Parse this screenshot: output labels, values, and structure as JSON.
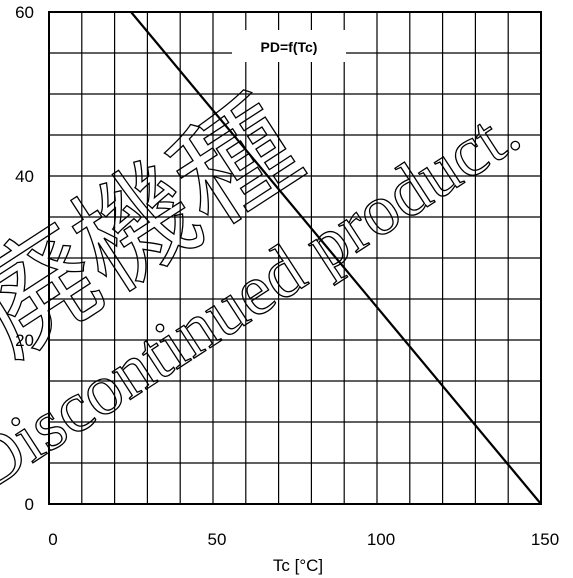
{
  "chart_data": {
    "type": "line",
    "annotation": "PD=f(Tc)",
    "xlabel": "Tc [°C]",
    "ylabel": "",
    "xlim": [
      0,
      150
    ],
    "ylim": [
      0,
      60
    ],
    "x_ticks": [
      0,
      50,
      100,
      150
    ],
    "y_ticks": [
      0,
      20,
      40,
      60
    ],
    "x_minor_step": 10,
    "y_minor_step": 5,
    "grid": true,
    "series": [
      {
        "values": [
          [
            25,
            60
          ],
          [
            150,
            0
          ]
        ]
      }
    ],
    "colors": {
      "line": "#000000",
      "grid": "#000000"
    }
  },
  "watermark": {
    "kanji": "廃機種",
    "text": "Discontinued product."
  }
}
